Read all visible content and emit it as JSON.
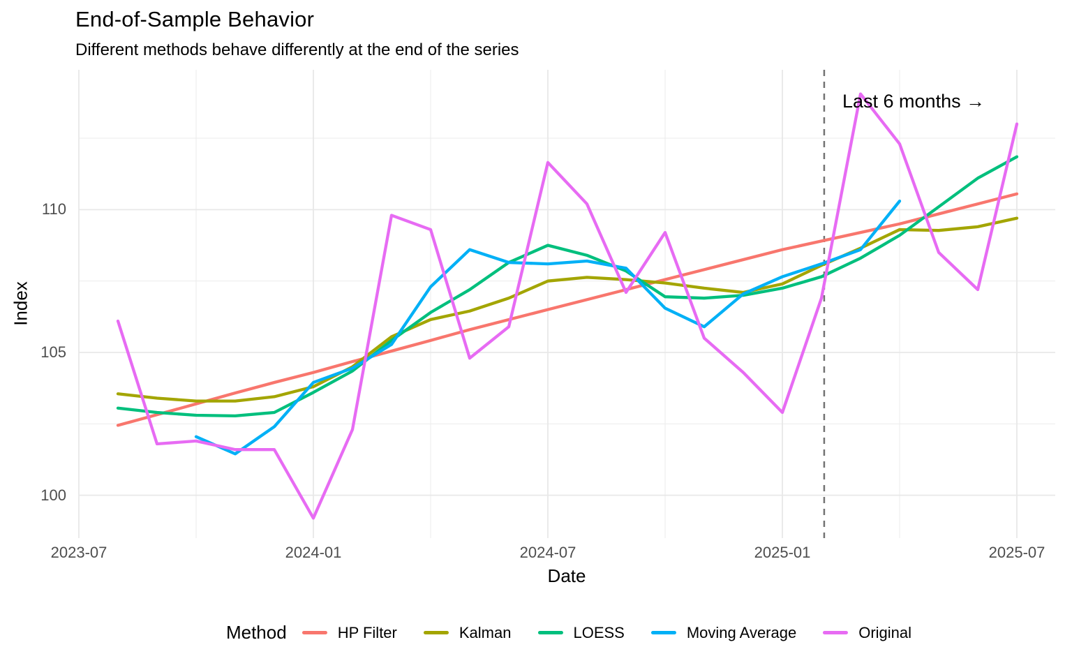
{
  "title": "End-of-Sample Behavior",
  "subtitle": "Different methods behave differently at the end of the series",
  "annotation": "Last 6 months →",
  "chart_data": {
    "type": "line",
    "title": "End-of-Sample Behavior",
    "subtitle": "Different methods behave differently at the end of the series",
    "xlabel": "Date",
    "ylabel": "Index",
    "legend_title": "Method",
    "legend_position": "bottom",
    "grid": "on",
    "ylim": [
      98.5,
      114.9
    ],
    "y_ticks": [
      100,
      105,
      110
    ],
    "y_tick_labels": [
      "100",
      "105",
      "110"
    ],
    "y_minor": [
      102.5,
      107.5,
      112.5
    ],
    "x_tick_months": [
      0,
      6,
      12,
      18,
      24
    ],
    "x_tick_labels": [
      "2023-07",
      "2024-01",
      "2024-07",
      "2025-01",
      "2025-07"
    ],
    "x_minor_months": [
      3,
      9,
      15,
      21
    ],
    "months": [
      "2023-08",
      "2023-09",
      "2023-10",
      "2023-11",
      "2023-12",
      "2024-01",
      "2024-02",
      "2024-03",
      "2024-04",
      "2024-05",
      "2024-06",
      "2024-07",
      "2024-08",
      "2024-09",
      "2024-10",
      "2024-11",
      "2024-12",
      "2025-01",
      "2025-02",
      "2025-03",
      "2025-04",
      "2025-05",
      "2025-06",
      "2025-07"
    ],
    "series": [
      {
        "name": "HP Filter",
        "color": "#F8766D",
        "start_index": 0,
        "values": [
          102.45,
          102.82,
          103.2,
          103.58,
          103.95,
          104.3,
          104.68,
          105.05,
          105.42,
          105.8,
          106.15,
          106.5,
          106.85,
          107.2,
          107.55,
          107.9,
          108.25,
          108.6,
          108.9,
          109.2,
          109.5,
          109.85,
          110.2,
          110.55
        ]
      },
      {
        "name": "Kalman",
        "color": "#A3A500",
        "start_index": 0,
        "values": [
          103.55,
          103.4,
          103.3,
          103.3,
          103.45,
          103.8,
          104.5,
          105.55,
          106.15,
          106.45,
          106.9,
          107.5,
          107.63,
          107.55,
          107.43,
          107.25,
          107.1,
          107.4,
          108.05,
          108.65,
          109.3,
          109.27,
          109.4,
          109.7
        ]
      },
      {
        "name": "LOESS",
        "color": "#00BF7D",
        "start_index": 0,
        "values": [
          103.05,
          102.9,
          102.8,
          102.78,
          102.9,
          103.6,
          104.35,
          105.42,
          106.4,
          107.2,
          108.15,
          108.75,
          108.4,
          107.85,
          106.95,
          106.9,
          107.0,
          107.25,
          107.65,
          108.3,
          109.1,
          110.1,
          111.1,
          111.85
        ]
      },
      {
        "name": "Moving Average",
        "color": "#00B0F6",
        "start_index": 2,
        "values": [
          102.05,
          101.45,
          102.4,
          103.95,
          104.45,
          105.28,
          107.3,
          108.6,
          108.15,
          108.1,
          108.2,
          107.95,
          106.55,
          105.9,
          107.05,
          107.65,
          108.1,
          108.6,
          110.3
        ]
      },
      {
        "name": "Original",
        "color": "#E76BF3",
        "start_index": 0,
        "values": [
          106.1,
          101.8,
          101.9,
          101.6,
          101.6,
          99.2,
          102.3,
          109.8,
          109.3,
          104.8,
          105.9,
          111.65,
          110.2,
          107.1,
          109.2,
          105.5,
          104.3,
          102.9,
          106.9,
          114.05,
          112.3,
          108.5,
          107.2,
          113.0
        ]
      }
    ],
    "vline": {
      "month": 19.07,
      "label": "Last 6 months →",
      "style": "dashed",
      "color": "#737373"
    }
  }
}
